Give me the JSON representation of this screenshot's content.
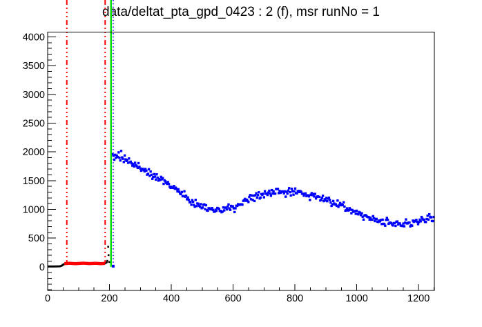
{
  "title": "data/deltat_pta_gpd_0423 : 2 (f), msr runNo = 1",
  "chart_data": {
    "type": "scatter",
    "title": "data/deltat_pta_gpd_0423 : 2 (f), msr runNo = 1",
    "grid": false,
    "legend": null,
    "background_color": "#ffffff",
    "frame_color": "#000000",
    "x_axis": {
      "min": 0,
      "max": 1251,
      "tick_values": [
        0,
        200,
        400,
        600,
        800,
        1000,
        1200
      ],
      "tick_labels": [
        "0",
        "200",
        "400",
        "600",
        "800",
        "1000",
        "1200"
      ],
      "minor_step": 50
    },
    "y_axis": {
      "min": -410,
      "max": 4085,
      "tick_values": [
        0,
        500,
        1000,
        1500,
        2000,
        2500,
        3000,
        3500,
        4000
      ],
      "tick_labels": [
        "0",
        "500",
        "1000",
        "1500",
        "2000",
        "2500",
        "3000",
        "3500",
        "4000"
      ],
      "minor_step": 100
    },
    "series": [
      {
        "name": "raw-histogram-prefix",
        "color": "#000000",
        "style": "line",
        "line_width": 3,
        "points": [
          [
            0,
            8
          ],
          [
            20,
            8
          ],
          [
            40,
            10
          ],
          [
            46,
            22
          ],
          [
            52,
            46
          ],
          [
            54,
            55
          ]
        ]
      },
      {
        "name": "background-window",
        "color": "#ff0000",
        "style": "line",
        "line_width": 4.5,
        "points": [
          [
            54,
            55
          ],
          [
            70,
            63
          ],
          [
            90,
            55
          ],
          [
            115,
            64
          ],
          [
            135,
            57
          ],
          [
            155,
            63
          ],
          [
            172,
            56
          ],
          [
            186,
            60
          ]
        ]
      },
      {
        "name": "t0-prompt-edge",
        "color": "#000000",
        "style": "points",
        "marker_size": 2.6,
        "points": [
          [
            188,
            66
          ],
          [
            191,
            80
          ],
          [
            193,
            105
          ],
          [
            196,
            350
          ],
          [
            197,
            205
          ],
          [
            199,
            85
          ]
        ]
      },
      {
        "name": "decay-data",
        "color": "#0000ff",
        "style": "points",
        "marker_size": 3.4,
        "noise_amp": 95,
        "start_noise_amp": 200,
        "step": 2.8,
        "anchors": [
          [
            210,
            1950
          ],
          [
            225,
            1905
          ],
          [
            245,
            1865
          ],
          [
            270,
            1810
          ],
          [
            300,
            1730
          ],
          [
            330,
            1640
          ],
          [
            360,
            1540
          ],
          [
            395,
            1420
          ],
          [
            430,
            1290
          ],
          [
            465,
            1150
          ],
          [
            495,
            1060
          ],
          [
            520,
            1010
          ],
          [
            545,
            990
          ],
          [
            570,
            995
          ],
          [
            600,
            1035
          ],
          [
            640,
            1120
          ],
          [
            680,
            1220
          ],
          [
            720,
            1295
          ],
          [
            760,
            1315
          ],
          [
            800,
            1300
          ],
          [
            840,
            1265
          ],
          [
            880,
            1210
          ],
          [
            920,
            1130
          ],
          [
            960,
            1040
          ],
          [
            1000,
            950
          ],
          [
            1040,
            860
          ],
          [
            1075,
            795
          ],
          [
            1110,
            757
          ],
          [
            1145,
            750
          ],
          [
            1180,
            765
          ],
          [
            1215,
            820
          ],
          [
            1251,
            860
          ]
        ]
      },
      {
        "name": "first-good-bin-point",
        "color": "#0000ff",
        "style": "points",
        "marker_size": 4,
        "points": [
          [
            212,
            12
          ]
        ]
      }
    ],
    "annotations": [
      {
        "name": "background-start-line",
        "type": "vline",
        "x": 62,
        "color": "#ff0000",
        "style": "dash-dot-dot",
        "width": 2,
        "y_to_value": 70
      },
      {
        "name": "background-end-line",
        "type": "vline",
        "x": 186,
        "color": "#ff0000",
        "style": "dash-dot-dot",
        "width": 2,
        "y_to_value": 70
      },
      {
        "name": "t0-line",
        "type": "vline",
        "x": 205,
        "color": "#00dd00",
        "style": "solid",
        "width": 2.5,
        "y_to_value": 0
      },
      {
        "name": "data-start-line",
        "type": "vline",
        "x": 212,
        "color": "#0000ff",
        "style": "dotted",
        "width": 1.6,
        "y_to_value": 5
      }
    ]
  }
}
